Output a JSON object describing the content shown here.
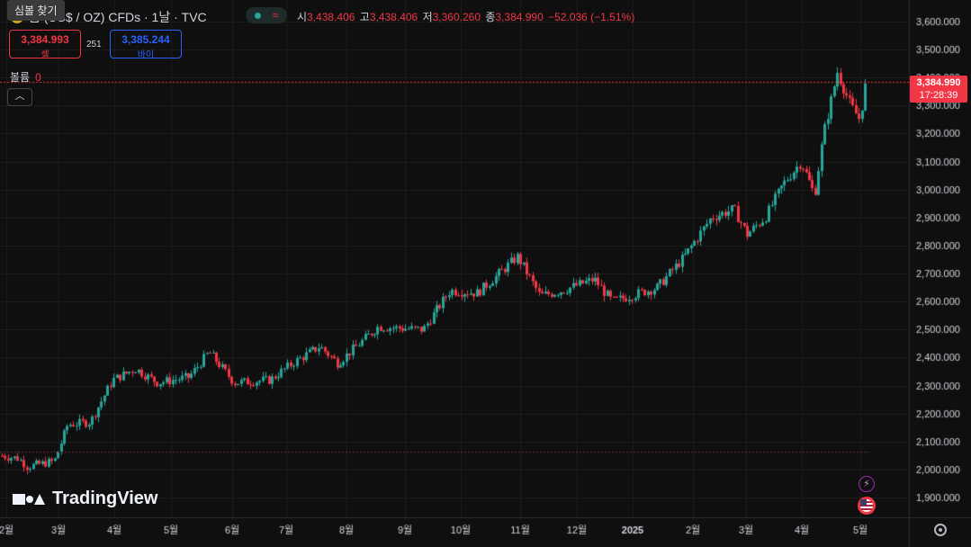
{
  "tooltip": "심볼 찾기",
  "header": {
    "title": "금 (US$ / OZ) CFDs · 1날 · TVC",
    "ohlc": [
      {
        "k": "시",
        "v": "3,438.406"
      },
      {
        "k": "고",
        "v": "3,438.406"
      },
      {
        "k": "저",
        "v": "3,360.260"
      },
      {
        "k": "종",
        "v": "3,384.990"
      }
    ],
    "change": "−52.036 (−1.51%)"
  },
  "trade": {
    "sell_price": "3,384.993",
    "sell_label": "셀",
    "spread": "251",
    "buy_price": "3,385.244",
    "buy_label": "바이"
  },
  "volume": {
    "label": "볼륨",
    "value": "0"
  },
  "collapse_icon": "chevron-up-icon",
  "last_price": {
    "price": "3,384.990",
    "countdown": "17:28:39"
  },
  "logo_text": "TradingView",
  "colors": {
    "up": "#26a69a",
    "down": "#f23645",
    "bg": "#0f0f0f",
    "grid": "#1e1e1e"
  },
  "chart_data": {
    "type": "candlestick",
    "title": "금 (US$ / OZ) CFDs",
    "interval": "1날",
    "y_ticks": [
      "3,600.000",
      "3,500.000",
      "3,400.000",
      "3,300.000",
      "3,200.000",
      "3,100.000",
      "3,000.000",
      "2,900.000",
      "2,800.000",
      "2,700.000",
      "2,600.000",
      "2,500.000",
      "2,400.000",
      "2,300.000",
      "2,200.000",
      "2,100.000",
      "2,000.000",
      "1,900.000"
    ],
    "ylim": [
      1860,
      3650
    ],
    "x_ticks": [
      "2월",
      "3월",
      "4월",
      "5월",
      "6월",
      "7월",
      "8월",
      "9월",
      "10월",
      "11월",
      "12월",
      "2025",
      "2월",
      "3월",
      "4월",
      "5월"
    ],
    "approx_monthly_close": [
      {
        "month": "2월",
        "close": 2050
      },
      {
        "month": "3월",
        "close": 2230
      },
      {
        "month": "4월",
        "close": 2300
      },
      {
        "month": "5월",
        "close": 2330
      },
      {
        "month": "6월",
        "close": 2340
      },
      {
        "month": "7월",
        "close": 2440
      },
      {
        "month": "8월",
        "close": 2500
      },
      {
        "month": "9월",
        "close": 2630
      },
      {
        "month": "10월",
        "close": 2740
      },
      {
        "month": "11월",
        "close": 2650
      },
      {
        "month": "12월",
        "close": 2620
      },
      {
        "month": "2025",
        "close": 2800
      },
      {
        "month": "2월",
        "close": 2860
      },
      {
        "month": "3월",
        "close": 3120
      },
      {
        "month": "4월",
        "close": 3290
      },
      {
        "month": "5월",
        "close": 3385
      }
    ],
    "last": 3384.99,
    "reference_line": 2065
  }
}
